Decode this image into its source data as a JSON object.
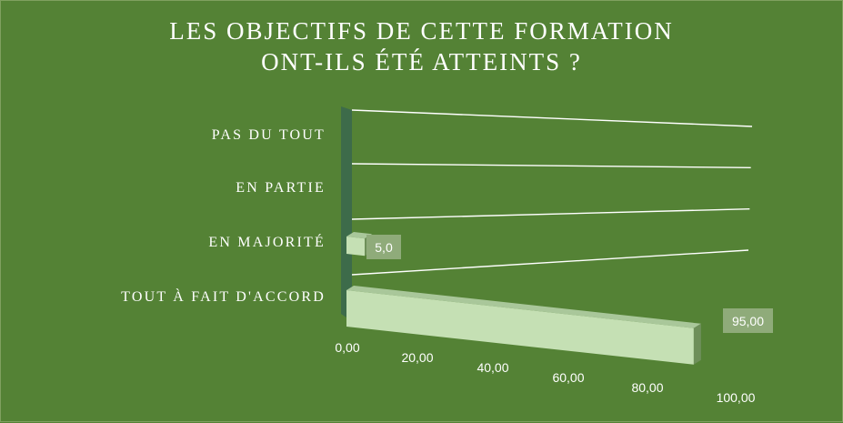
{
  "chart_data": {
    "type": "bar",
    "orientation": "horizontal",
    "title_line1": "LES OBJECTIFS DE CETTE FORMATION",
    "title_line2": "ONT-ILS ÉTÉ ATTEINTS  ?",
    "categories": [
      "PAS DU TOUT",
      "EN PARTIE",
      "EN MAJORITÉ",
      "TOUT À FAIT D'ACCORD"
    ],
    "values": [
      0,
      0,
      5.0,
      95.0
    ],
    "data_labels": [
      "",
      "",
      "5,0",
      "95,00"
    ],
    "xlim": [
      0,
      100
    ],
    "x_ticks": [
      0,
      20,
      40,
      60,
      80,
      100
    ],
    "x_tick_labels": [
      "0,00",
      "20,00",
      "40,00",
      "60,00",
      "80,00",
      "100,00"
    ],
    "grid": true,
    "style": "3d",
    "colors": {
      "background": "#548235",
      "bar_front": "#c5e0b4",
      "bar_top": "#a9c79a",
      "bar_side": "#6e8f5a",
      "wall": "#3d6b4a",
      "label_box": "#8fab7a",
      "grid": "#ffffff",
      "text": "#ffffff"
    }
  }
}
